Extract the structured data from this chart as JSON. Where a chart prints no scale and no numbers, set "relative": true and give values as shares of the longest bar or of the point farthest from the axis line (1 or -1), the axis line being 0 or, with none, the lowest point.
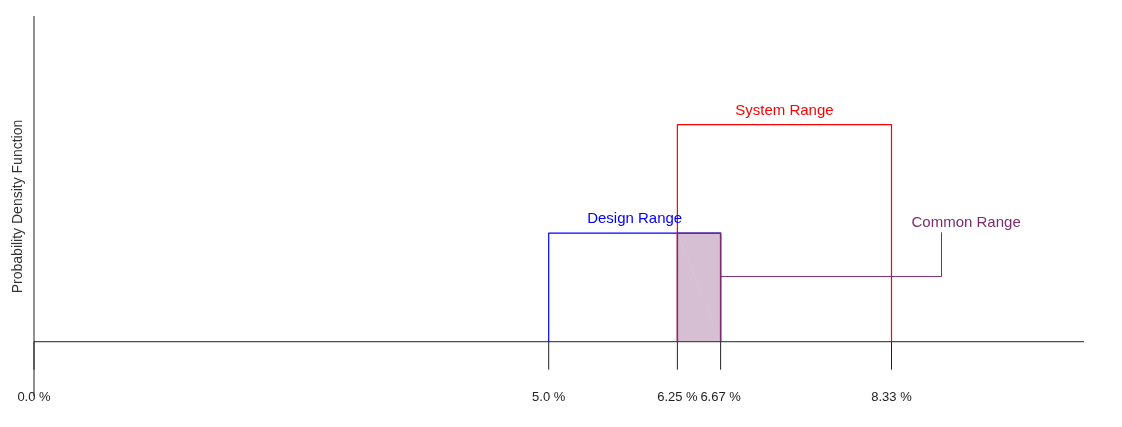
{
  "chart_data": {
    "type": "line",
    "relative": true,
    "ylabel": "Probability Density Function",
    "xlim": [
      0,
      10.2
    ],
    "xticks": [
      {
        "value": 0,
        "label": "0.0 %"
      },
      {
        "value": 5,
        "label": "5.0 %"
      },
      {
        "value": 6.25,
        "label": "6.25 %"
      },
      {
        "value": 6.67,
        "label": "6.67 %"
      },
      {
        "value": 8.33,
        "label": "8.33 %"
      }
    ],
    "series": [
      {
        "name": "Design Range",
        "color": "#0000ff",
        "x": [
          5,
          5,
          6.67,
          6.67
        ],
        "values": [
          0,
          0.5,
          0.5,
          0
        ]
      },
      {
        "name": "System Range",
        "color": "#ff0000",
        "x": [
          6.25,
          6.25,
          8.33,
          8.33
        ],
        "values": [
          0,
          1,
          1,
          0
        ]
      },
      {
        "name": "Common Range",
        "type": "area",
        "color": "#7b2c6e",
        "x": [
          6.25,
          6.25,
          6.67,
          6.67
        ],
        "values": [
          0,
          0.5,
          0.5,
          0
        ]
      }
    ],
    "marker": "none",
    "grid": false
  }
}
